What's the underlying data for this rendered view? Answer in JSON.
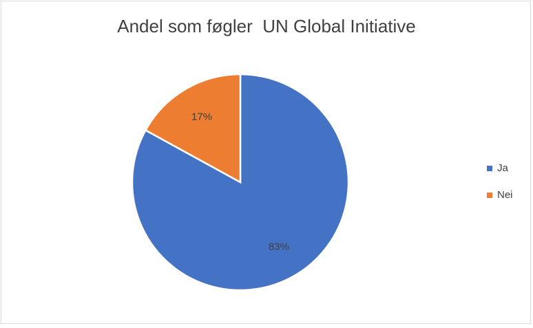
{
  "chart_data": {
    "type": "pie",
    "title": "Andel som føgler  UN Global Initiative",
    "categories": [
      "Ja",
      "Nei"
    ],
    "values": [
      83,
      17
    ],
    "value_labels": [
      "83%",
      "17%"
    ],
    "colors": [
      "#4472c4",
      "#ed7d31"
    ],
    "legend": "right"
  }
}
